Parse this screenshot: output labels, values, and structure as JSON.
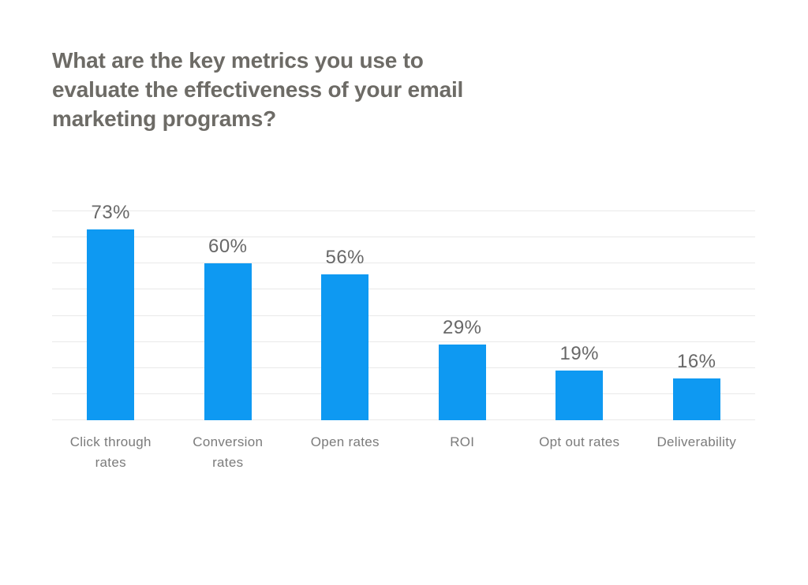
{
  "header": {
    "title_lines": [
      "What are the key metrics you use to",
      "evaluate the effectiveness of your email",
      "marketing programs?"
    ]
  },
  "chart_data": {
    "type": "bar",
    "title": "What are the key metrics you use to evaluate the effectiveness of your email marketing programs?",
    "categories": [
      "Click through rates",
      "Conversion rates",
      "Open rates",
      "ROI",
      "Opt out rates",
      "Deliverability"
    ],
    "values": [
      73,
      60,
      56,
      29,
      19,
      16
    ],
    "value_labels": [
      "73%",
      "60%",
      "56%",
      "29%",
      "19%",
      "16%"
    ],
    "xlabel": "",
    "ylabel": "",
    "ylim": [
      0,
      80
    ],
    "gridline_step": 10,
    "grid": true,
    "legend": "none",
    "colors": {
      "bar": "#0e99f2",
      "gridline": "#e9e9e9",
      "title_text": "#6d6b66",
      "value_text": "#686868",
      "category_text": "#7b7b7b"
    }
  }
}
